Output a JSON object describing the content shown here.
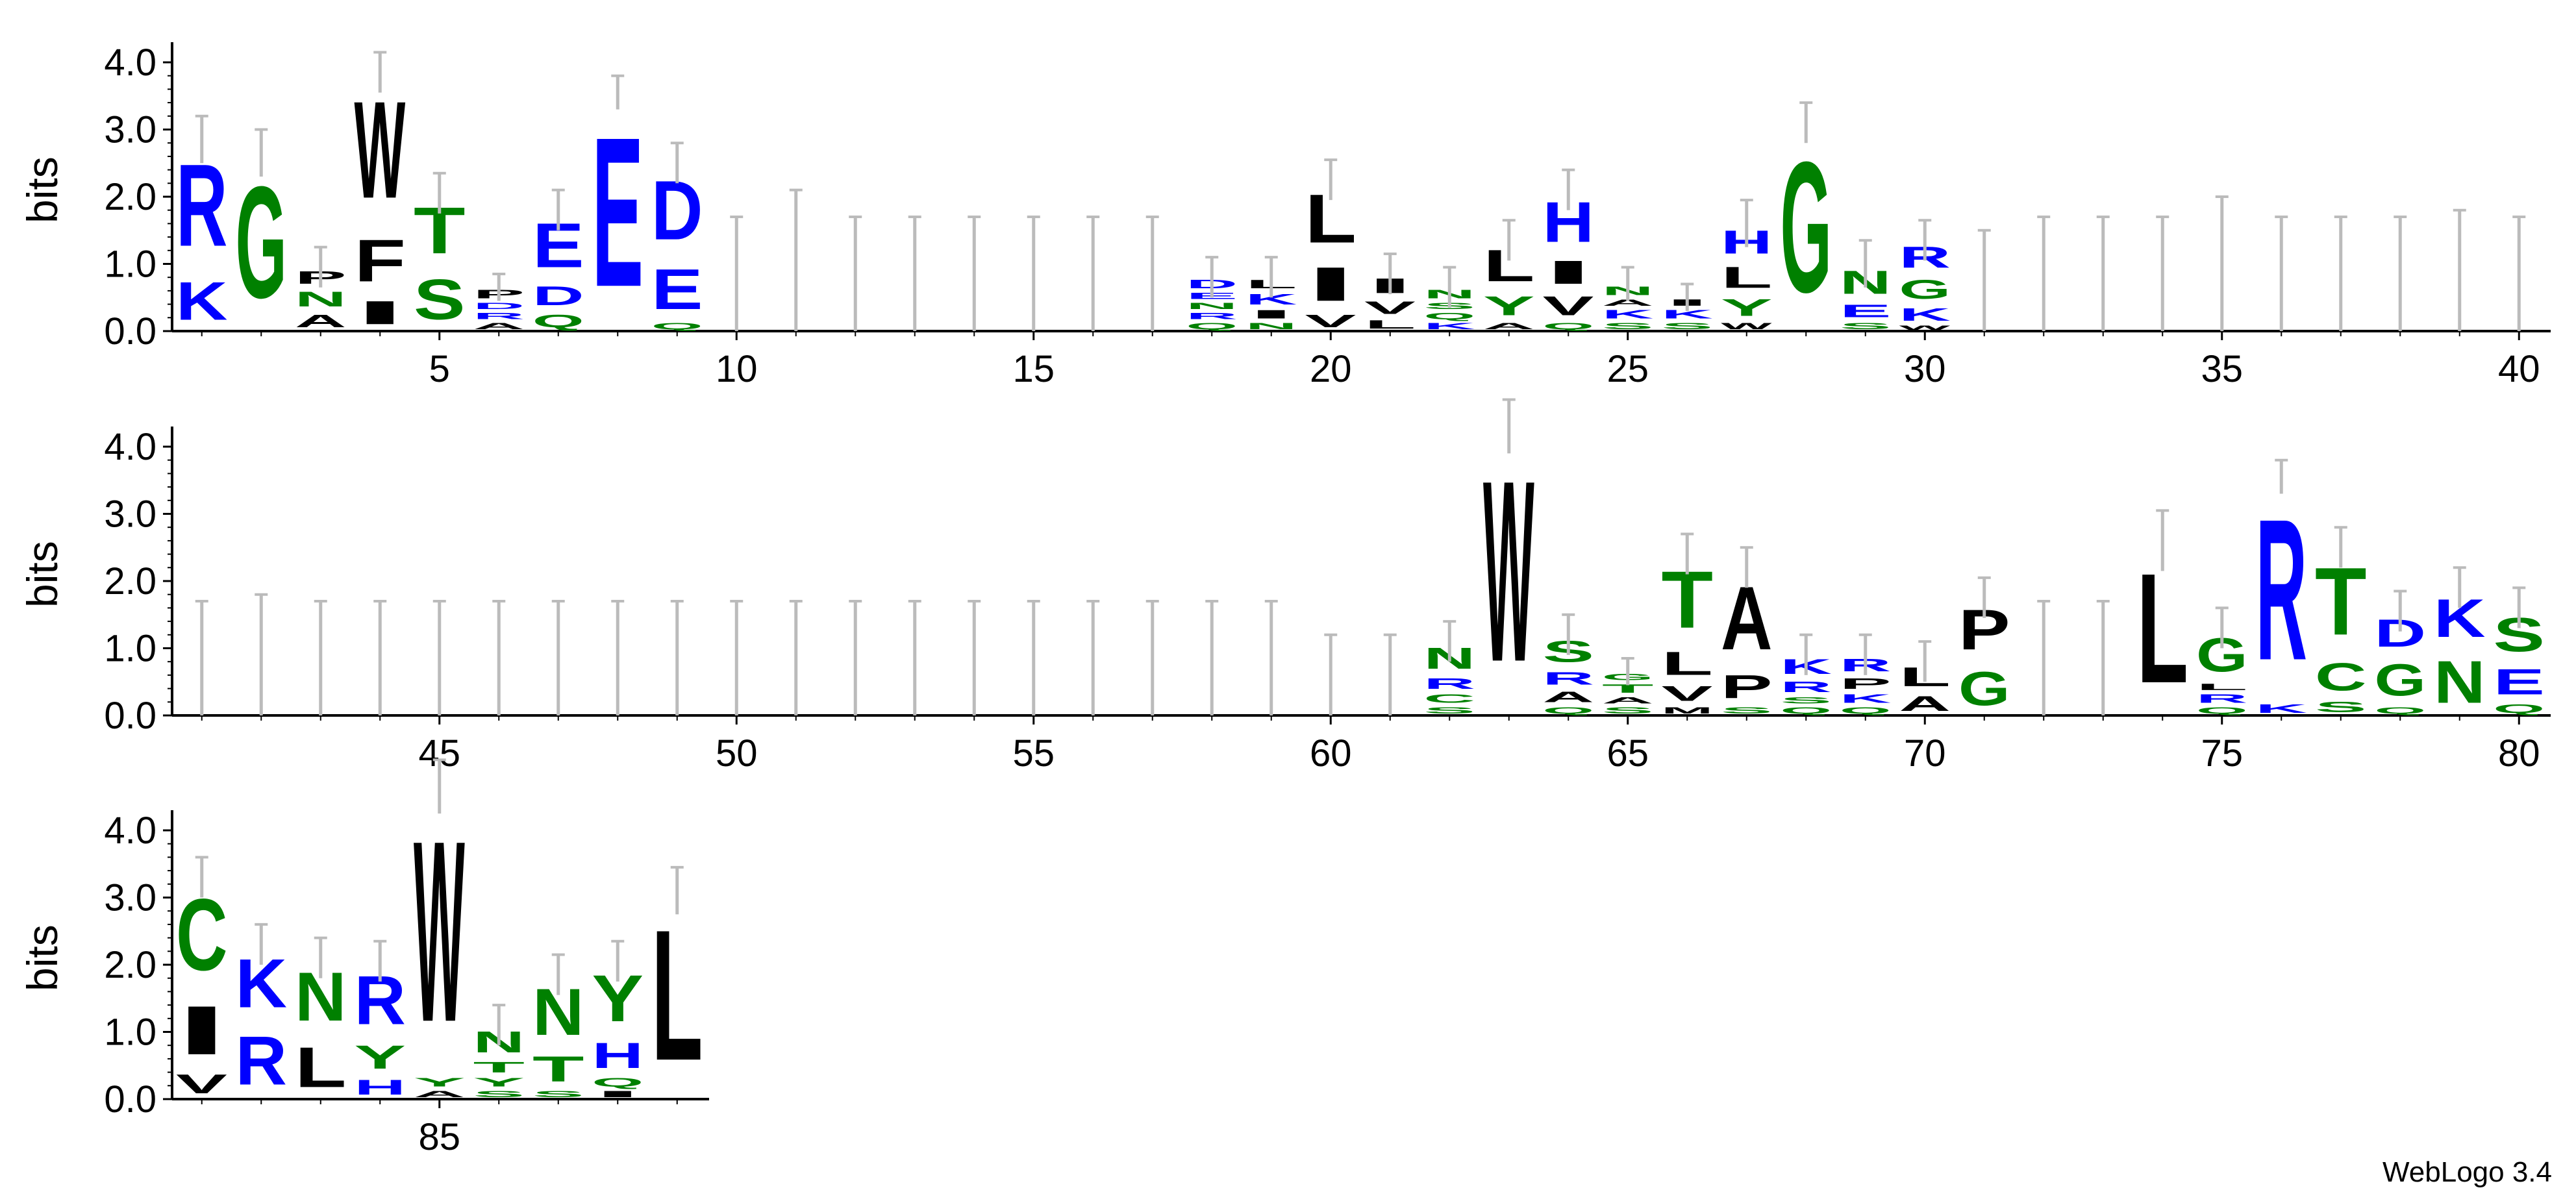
{
  "credit": "WebLogo 3.4",
  "colors": {
    "basic": "#0000ff",
    "hydrophobic": "#000000",
    "polar": "#008000",
    "errorbar": "#bbbbbb"
  },
  "chart_data": {
    "type": "sequence-logo",
    "ylabel": "bits",
    "ylim": [
      0,
      4.3
    ],
    "yticks": [
      "0.0",
      "1.0",
      "2.0",
      "3.0",
      "4.0"
    ],
    "rows": [
      {
        "range": [
          1,
          40
        ],
        "xticks": [
          "5",
          "10",
          "15",
          "20",
          "25",
          "30",
          "35",
          "40"
        ]
      },
      {
        "range": [
          41,
          80
        ],
        "xticks": [
          "45",
          "50",
          "55",
          "60",
          "65",
          "70",
          "75",
          "80"
        ]
      },
      {
        "range": [
          81,
          89
        ],
        "xticks": [
          "85"
        ]
      }
    ],
    "positions": [
      {
        "pos": 1,
        "err": 0.35,
        "stack": [
          [
            "K",
            0.9
          ],
          [
            "R",
            1.95
          ]
        ]
      },
      {
        "pos": 2,
        "err": 0.35,
        "stack": [
          [
            "G",
            2.65
          ]
        ]
      },
      {
        "pos": 3,
        "err": 0.3,
        "stack": [
          [
            "A",
            0.3
          ],
          [
            "N",
            0.35
          ],
          [
            "P",
            0.3
          ]
        ]
      },
      {
        "pos": 4,
        "err": 0.3,
        "stack": [
          [
            "I",
            0.55
          ],
          [
            "F",
            1.0
          ],
          [
            "W",
            2.3
          ]
        ]
      },
      {
        "pos": 5,
        "err": 0.3,
        "stack": [
          [
            "S",
            0.95
          ],
          [
            "T",
            1.1
          ]
        ]
      },
      {
        "pos": 6,
        "err": 0.2,
        "stack": [
          [
            "A",
            0.15
          ],
          [
            "R",
            0.15
          ],
          [
            "D",
            0.15
          ],
          [
            "P",
            0.2
          ]
        ]
      },
      {
        "pos": 7,
        "err": 0.3,
        "stack": [
          [
            "Q",
            0.3
          ],
          [
            "D",
            0.45
          ],
          [
            "E",
            1.05
          ]
        ]
      },
      {
        "pos": 8,
        "err": 0.25,
        "stack": [
          [
            "E",
            3.55
          ]
        ]
      },
      {
        "pos": 9,
        "err": 0.3,
        "stack": [
          [
            "Q",
            0.15
          ],
          [
            "E",
            0.95
          ],
          [
            "D",
            1.4
          ]
        ]
      },
      {
        "pos": 10,
        "err": 1.7,
        "stack": []
      },
      {
        "pos": 11,
        "err": 2.1,
        "stack": []
      },
      {
        "pos": 12,
        "err": 1.7,
        "stack": []
      },
      {
        "pos": 13,
        "err": 1.7,
        "stack": []
      },
      {
        "pos": 14,
        "err": 1.7,
        "stack": []
      },
      {
        "pos": 15,
        "err": 1.7,
        "stack": []
      },
      {
        "pos": 16,
        "err": 1.7,
        "stack": []
      },
      {
        "pos": 17,
        "err": 1.7,
        "stack": []
      },
      {
        "pos": 18,
        "err": 0.3,
        "stack": [
          [
            "Q",
            0.15
          ],
          [
            "R",
            0.15
          ],
          [
            "N",
            0.15
          ],
          [
            "E",
            0.15
          ],
          [
            "D",
            0.2
          ]
        ]
      },
      {
        "pos": 19,
        "err": 0.3,
        "stack": [
          [
            "N",
            0.15
          ],
          [
            "I",
            0.2
          ],
          [
            "K",
            0.25
          ],
          [
            "L",
            0.2
          ]
        ]
      },
      {
        "pos": 20,
        "err": 0.3,
        "stack": [
          [
            "V",
            0.3
          ],
          [
            "I",
            0.8
          ],
          [
            "L",
            1.15
          ]
        ]
      },
      {
        "pos": 21,
        "err": 0.3,
        "stack": [
          [
            "L",
            0.2
          ],
          [
            "V",
            0.3
          ],
          [
            "I",
            0.35
          ]
        ]
      },
      {
        "pos": 22,
        "err": 0.3,
        "stack": [
          [
            "K",
            0.15
          ],
          [
            "Q",
            0.15
          ],
          [
            "S",
            0.15
          ],
          [
            "N",
            0.2
          ]
        ]
      },
      {
        "pos": 23,
        "err": 0.3,
        "stack": [
          [
            "A",
            0.15
          ],
          [
            "Y",
            0.45
          ],
          [
            "L",
            0.75
          ]
        ]
      },
      {
        "pos": 24,
        "err": 0.3,
        "stack": [
          [
            "Q",
            0.15
          ],
          [
            "V",
            0.45
          ],
          [
            "I",
            0.55
          ],
          [
            "H",
            0.95
          ]
        ]
      },
      {
        "pos": 25,
        "err": 0.25,
        "stack": [
          [
            "S",
            0.15
          ],
          [
            "K",
            0.2
          ],
          [
            "A",
            0.15
          ],
          [
            "N",
            0.2
          ]
        ]
      },
      {
        "pos": 26,
        "err": 0.2,
        "stack": [
          [
            "S",
            0.15
          ],
          [
            "K",
            0.2
          ],
          [
            "I",
            0.15
          ]
        ]
      },
      {
        "pos": 27,
        "err": 0.35,
        "stack": [
          [
            "W",
            0.15
          ],
          [
            "Y",
            0.4
          ],
          [
            "L",
            0.5
          ],
          [
            "H",
            0.55
          ]
        ]
      },
      {
        "pos": 28,
        "err": 0.3,
        "stack": [
          [
            "G",
            3.1
          ]
        ]
      },
      {
        "pos": 29,
        "err": 0.35,
        "stack": [
          [
            "S",
            0.15
          ],
          [
            "E",
            0.3
          ],
          [
            "N",
            0.55
          ]
        ]
      },
      {
        "pos": 30,
        "err": 0.3,
        "stack": [
          [
            "W",
            0.1
          ],
          [
            "K",
            0.3
          ],
          [
            "G",
            0.45
          ],
          [
            "R",
            0.5
          ]
        ]
      },
      {
        "pos": 31,
        "err": 1.5,
        "stack": []
      },
      {
        "pos": 32,
        "err": 1.7,
        "stack": []
      },
      {
        "pos": 33,
        "err": 1.7,
        "stack": []
      },
      {
        "pos": 34,
        "err": 1.7,
        "stack": []
      },
      {
        "pos": 35,
        "err": 2.0,
        "stack": []
      },
      {
        "pos": 36,
        "err": 1.7,
        "stack": []
      },
      {
        "pos": 37,
        "err": 1.7,
        "stack": []
      },
      {
        "pos": 38,
        "err": 1.7,
        "stack": []
      },
      {
        "pos": 39,
        "err": 1.8,
        "stack": []
      },
      {
        "pos": 40,
        "err": 1.7,
        "stack": []
      },
      {
        "pos": 41,
        "err": 1.7,
        "stack": []
      },
      {
        "pos": 42,
        "err": 1.8,
        "stack": []
      },
      {
        "pos": 43,
        "err": 1.7,
        "stack": []
      },
      {
        "pos": 44,
        "err": 1.7,
        "stack": []
      },
      {
        "pos": 45,
        "err": 1.7,
        "stack": []
      },
      {
        "pos": 46,
        "err": 1.7,
        "stack": []
      },
      {
        "pos": 47,
        "err": 1.7,
        "stack": []
      },
      {
        "pos": 48,
        "err": 1.7,
        "stack": []
      },
      {
        "pos": 49,
        "err": 1.7,
        "stack": []
      },
      {
        "pos": 50,
        "err": 1.7,
        "stack": []
      },
      {
        "pos": 51,
        "err": 1.7,
        "stack": []
      },
      {
        "pos": 52,
        "err": 1.7,
        "stack": []
      },
      {
        "pos": 53,
        "err": 1.7,
        "stack": []
      },
      {
        "pos": 54,
        "err": 1.7,
        "stack": []
      },
      {
        "pos": 55,
        "err": 1.7,
        "stack": []
      },
      {
        "pos": 56,
        "err": 1.7,
        "stack": []
      },
      {
        "pos": 57,
        "err": 1.7,
        "stack": []
      },
      {
        "pos": 58,
        "err": 1.7,
        "stack": []
      },
      {
        "pos": 59,
        "err": 1.7,
        "stack": []
      },
      {
        "pos": 60,
        "err": 1.2,
        "stack": []
      },
      {
        "pos": 61,
        "err": 1.2,
        "stack": []
      },
      {
        "pos": 62,
        "err": 0.3,
        "stack": [
          [
            "S",
            0.15
          ],
          [
            "C",
            0.2
          ],
          [
            "R",
            0.25
          ],
          [
            "N",
            0.5
          ]
        ]
      },
      {
        "pos": 63,
        "err": 0.4,
        "stack": [
          [
            "W",
            4.3
          ]
        ]
      },
      {
        "pos": 64,
        "err": 0.3,
        "stack": [
          [
            "Q",
            0.15
          ],
          [
            "A",
            0.25
          ],
          [
            "R",
            0.3
          ],
          [
            "S",
            0.5
          ]
        ]
      },
      {
        "pos": 65,
        "err": 0.2,
        "stack": [
          [
            "S",
            0.15
          ],
          [
            "A",
            0.15
          ],
          [
            "T",
            0.2
          ],
          [
            "G",
            0.15
          ]
        ]
      },
      {
        "pos": 66,
        "err": 0.3,
        "stack": [
          [
            "M",
            0.15
          ],
          [
            "V",
            0.35
          ],
          [
            "L",
            0.55
          ],
          [
            "T",
            1.35
          ]
        ]
      },
      {
        "pos": 67,
        "err": 0.3,
        "stack": [
          [
            "S",
            0.15
          ],
          [
            "P",
            0.55
          ],
          [
            "A",
            1.5
          ]
        ]
      },
      {
        "pos": 68,
        "err": 0.3,
        "stack": [
          [
            "Q",
            0.15
          ],
          [
            "S",
            0.15
          ],
          [
            "R",
            0.25
          ],
          [
            "K",
            0.35
          ]
        ]
      },
      {
        "pos": 69,
        "err": 0.3,
        "stack": [
          [
            "Q",
            0.15
          ],
          [
            "K",
            0.2
          ],
          [
            "P",
            0.25
          ],
          [
            "R",
            0.3
          ]
        ]
      },
      {
        "pos": 70,
        "err": 0.3,
        "stack": [
          [
            "A",
            0.35
          ],
          [
            "L",
            0.45
          ]
        ]
      },
      {
        "pos": 71,
        "err": 0.3,
        "stack": [
          [
            "G",
            0.8
          ],
          [
            "P",
            0.95
          ]
        ]
      },
      {
        "pos": 72,
        "err": 1.7,
        "stack": []
      },
      {
        "pos": 73,
        "err": 1.7,
        "stack": []
      },
      {
        "pos": 74,
        "err": 0.45,
        "stack": [
          [
            "L",
            2.6
          ]
        ]
      },
      {
        "pos": 75,
        "err": 0.3,
        "stack": [
          [
            "Q",
            0.15
          ],
          [
            "R",
            0.2
          ],
          [
            "L",
            0.15
          ],
          [
            "G",
            0.8
          ]
        ]
      },
      {
        "pos": 76,
        "err": 0.25,
        "stack": [
          [
            "K",
            0.2
          ],
          [
            "R",
            3.35
          ]
        ]
      },
      {
        "pos": 77,
        "err": 0.3,
        "stack": [
          [
            "S",
            0.25
          ],
          [
            "C",
            0.65
          ],
          [
            "T",
            1.6
          ]
        ]
      },
      {
        "pos": 78,
        "err": 0.3,
        "stack": [
          [
            "Q",
            0.15
          ],
          [
            "G",
            0.75
          ],
          [
            "D",
            0.65
          ]
        ]
      },
      {
        "pos": 79,
        "err": 0.3,
        "stack": [
          [
            "N",
            1.0
          ],
          [
            "K",
            0.9
          ]
        ]
      },
      {
        "pos": 80,
        "err": 0.3,
        "stack": [
          [
            "Q",
            0.2
          ],
          [
            "E",
            0.6
          ],
          [
            "S",
            0.8
          ]
        ]
      },
      {
        "pos": 81,
        "err": 0.3,
        "stack": [
          [
            "V",
            0.45
          ],
          [
            "I",
            1.15
          ],
          [
            "C",
            1.7
          ]
        ]
      },
      {
        "pos": 82,
        "err": 0.3,
        "stack": [
          [
            "R",
            1.15
          ],
          [
            "K",
            1.15
          ]
        ]
      },
      {
        "pos": 83,
        "err": 0.3,
        "stack": [
          [
            "L",
            0.95
          ],
          [
            "N",
            1.15
          ]
        ]
      },
      {
        "pos": 84,
        "err": 0.3,
        "stack": [
          [
            "H",
            0.35
          ],
          [
            "Y",
            0.55
          ],
          [
            "R",
            1.15
          ]
        ]
      },
      {
        "pos": 85,
        "err": 0.4,
        "stack": [
          [
            "A",
            0.15
          ],
          [
            "Y",
            0.2
          ],
          [
            "W",
            4.3
          ]
        ]
      },
      {
        "pos": 86,
        "err": 0.3,
        "stack": [
          [
            "S",
            0.15
          ],
          [
            "Y",
            0.2
          ],
          [
            "T",
            0.25
          ],
          [
            "N",
            0.5
          ]
        ]
      },
      {
        "pos": 87,
        "err": 0.3,
        "stack": [
          [
            "S",
            0.15
          ],
          [
            "T",
            0.6
          ],
          [
            "N",
            1.1
          ]
        ]
      },
      {
        "pos": 88,
        "err": 0.3,
        "stack": [
          [
            "I",
            0.15
          ],
          [
            "Q",
            0.2
          ],
          [
            "H",
            0.6
          ],
          [
            "Y",
            1.1
          ]
        ]
      },
      {
        "pos": 89,
        "err": 0.35,
        "stack": [
          [
            "L",
            3.1
          ]
        ]
      }
    ]
  }
}
